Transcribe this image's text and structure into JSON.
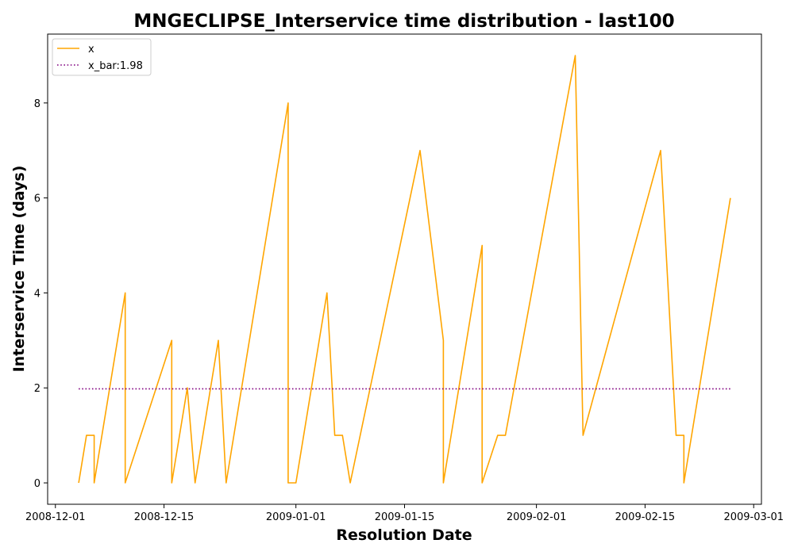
{
  "chart_data": {
    "type": "line",
    "title": "MNGECLIPSE_Interservice time distribution - last100",
    "xlabel": "Resolution Date",
    "ylabel": "Interservice Time (days)",
    "x_tick_labels": [
      "2008-12-01",
      "2008-12-15",
      "2009-01-01",
      "2009-01-15",
      "2009-02-01",
      "2009-02-15",
      "2009-03-01"
    ],
    "y_tick_labels": [
      "0",
      "2",
      "4",
      "6",
      "8"
    ],
    "xlim": [
      "2008-11-30",
      "2009-03-02"
    ],
    "ylim": [
      -0.45,
      9.45
    ],
    "grid": false,
    "legend": "upper-left",
    "series": [
      {
        "name": "x",
        "color": "#FFA500",
        "style": "solid",
        "points": [
          [
            "2008-12-04",
            0
          ],
          [
            "2008-12-05",
            1
          ],
          [
            "2008-12-06",
            1
          ],
          [
            "2008-12-06",
            0
          ],
          [
            "2008-12-10",
            4
          ],
          [
            "2008-12-10",
            0
          ],
          [
            "2008-12-16",
            3
          ],
          [
            "2008-12-16",
            0
          ],
          [
            "2008-12-18",
            2
          ],
          [
            "2008-12-19",
            0
          ],
          [
            "2008-12-22",
            3
          ],
          [
            "2008-12-23",
            0
          ],
          [
            "2008-12-31",
            8
          ],
          [
            "2008-12-31",
            0
          ],
          [
            "2009-01-01",
            0
          ],
          [
            "2009-01-05",
            4
          ],
          [
            "2009-01-06",
            1
          ],
          [
            "2009-01-07",
            1
          ],
          [
            "2009-01-08",
            0
          ],
          [
            "2009-01-17",
            7
          ],
          [
            "2009-01-20",
            3
          ],
          [
            "2009-01-20",
            0
          ],
          [
            "2009-01-25",
            5
          ],
          [
            "2009-01-25",
            0
          ],
          [
            "2009-01-27",
            1
          ],
          [
            "2009-01-28",
            1
          ],
          [
            "2009-02-06",
            9
          ],
          [
            "2009-02-07",
            1
          ],
          [
            "2009-02-17",
            7
          ],
          [
            "2009-02-19",
            1
          ],
          [
            "2009-02-20",
            1
          ],
          [
            "2009-02-20",
            0
          ],
          [
            "2009-02-26",
            6
          ]
        ]
      },
      {
        "name": "x_bar:1.98",
        "color": "#800080",
        "style": "dotted",
        "points": [
          [
            "2008-12-04",
            1.98
          ],
          [
            "2009-02-26",
            1.98
          ]
        ]
      }
    ]
  }
}
